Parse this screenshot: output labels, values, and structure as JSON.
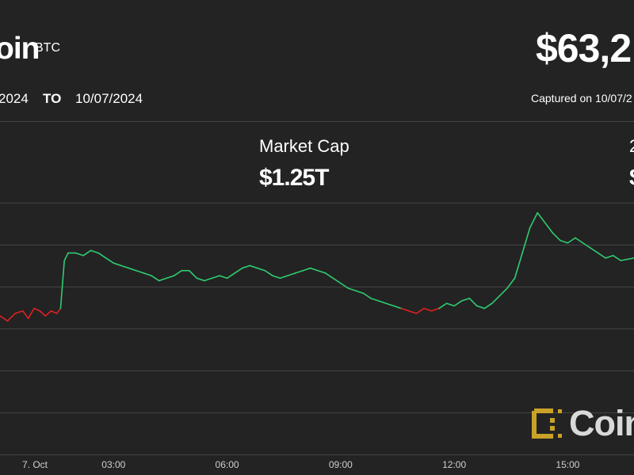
{
  "header": {
    "coin_name": "oin",
    "coin_symbol": "BTC",
    "price": "$63,2",
    "date_from": "2024",
    "to_label": "TO",
    "date_to": "10/07/2024",
    "captured": "Captured on 10/07/2"
  },
  "stats": {
    "market_cap_label": "Market Cap",
    "market_cap_value": "$1.25T",
    "second_label": "2",
    "second_value": "$"
  },
  "watermark": {
    "text": "Coin"
  },
  "colors": {
    "background": "#232323",
    "up": "#2ecc71",
    "down": "#e02020",
    "grid": "#444444",
    "watermark_gold": "#c9a227"
  },
  "chart_data": {
    "type": "line",
    "title": "",
    "xlabel": "",
    "ylabel": "",
    "x_tick_labels": [
      "7. Oct",
      "03:00",
      "06:00",
      "09:00",
      "12:00",
      "15:00"
    ],
    "x_tick_hours": [
      0,
      3,
      6,
      9,
      12,
      15
    ],
    "x_range_hours": [
      0.0,
      16.75
    ],
    "y_range": [
      0,
      100
    ],
    "grid": true,
    "legend": "none",
    "baseline": 58,
    "series": [
      {
        "x": [
          0.0,
          0.2,
          0.4,
          0.6,
          0.75,
          0.9,
          1.05,
          1.2,
          1.35,
          1.5,
          1.6,
          1.7,
          1.8,
          2.0,
          2.2,
          2.4,
          2.6,
          2.8,
          3.0,
          3.2,
          3.4,
          3.6,
          3.8,
          4.0,
          4.2,
          4.4,
          4.6,
          4.8,
          5.0,
          5.2,
          5.4,
          5.6,
          5.8,
          6.0,
          6.2,
          6.4,
          6.6,
          6.8,
          7.0,
          7.2,
          7.4,
          7.6,
          7.8,
          8.0,
          8.2,
          8.4,
          8.6,
          8.8,
          9.0,
          9.2,
          9.4,
          9.6,
          9.8,
          10.0,
          10.2,
          10.4,
          10.6,
          10.8,
          11.0,
          11.2,
          11.4,
          11.6,
          11.8,
          12.0,
          12.2,
          12.4,
          12.6,
          12.8,
          13.0,
          13.2,
          13.4,
          13.6,
          13.8,
          14.0,
          14.2,
          14.4,
          14.6,
          14.8,
          15.0,
          15.2,
          15.4,
          15.6,
          15.8,
          16.0,
          16.2,
          16.4,
          16.75
        ],
        "y": [
          55,
          53,
          56,
          57,
          54,
          58,
          57,
          55,
          57,
          56,
          58,
          77,
          80,
          80,
          79,
          81,
          80,
          78,
          76,
          75,
          74,
          73,
          72,
          71,
          69,
          70,
          71,
          73,
          73,
          70,
          69,
          70,
          71,
          70,
          72,
          74,
          75,
          74,
          73,
          71,
          70,
          71,
          72,
          73,
          74,
          73,
          72,
          70,
          68,
          66,
          65,
          64,
          62,
          61,
          60,
          59,
          58,
          57,
          56,
          58,
          57,
          58,
          60,
          59,
          61,
          62,
          59,
          58,
          60,
          63,
          66,
          70,
          80,
          90,
          96,
          92,
          88,
          85,
          84,
          86,
          84,
          82,
          80,
          78,
          79,
          77,
          78
        ]
      }
    ]
  }
}
